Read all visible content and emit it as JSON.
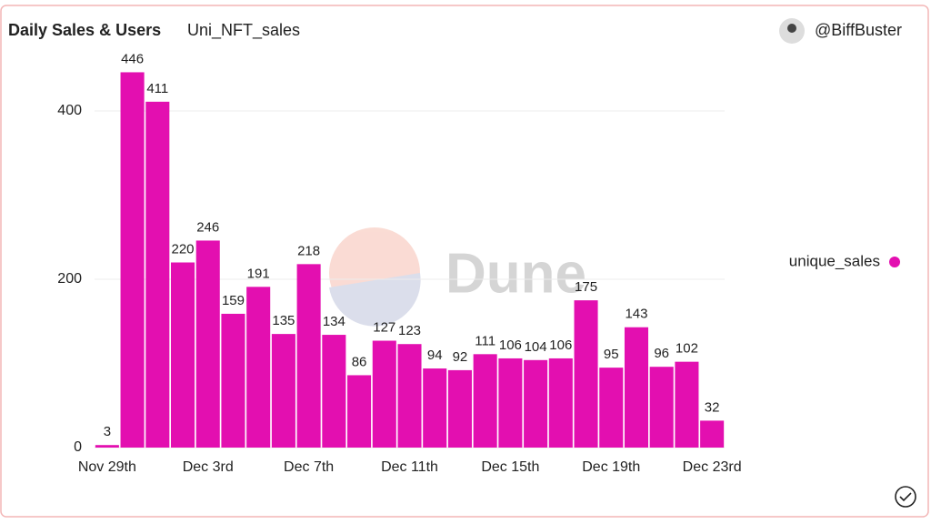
{
  "chart_data": {
    "type": "bar",
    "title": "Daily Sales & Users",
    "subtitle": "Uni_NFT_sales",
    "author": "@BiffBuster",
    "watermark": "Dune",
    "categories": [
      "Nov 29th",
      null,
      null,
      null,
      "Dec 3rd",
      null,
      null,
      null,
      "Dec 7th",
      null,
      null,
      null,
      "Dec 11th",
      null,
      null,
      null,
      "Dec 15th",
      null,
      null,
      null,
      "Dec 19th",
      null,
      null,
      null,
      "Dec 23rd"
    ],
    "series": [
      {
        "name": "unique_sales",
        "color": "#e30fb0",
        "values": [
          3,
          446,
          411,
          220,
          246,
          159,
          191,
          135,
          218,
          134,
          86,
          127,
          123,
          94,
          92,
          111,
          106,
          104,
          106,
          175,
          95,
          143,
          96,
          102,
          32
        ]
      }
    ],
    "ylim": [
      0,
      500
    ],
    "yticks": [
      0,
      200,
      400
    ],
    "grid": true,
    "legend": "right"
  }
}
